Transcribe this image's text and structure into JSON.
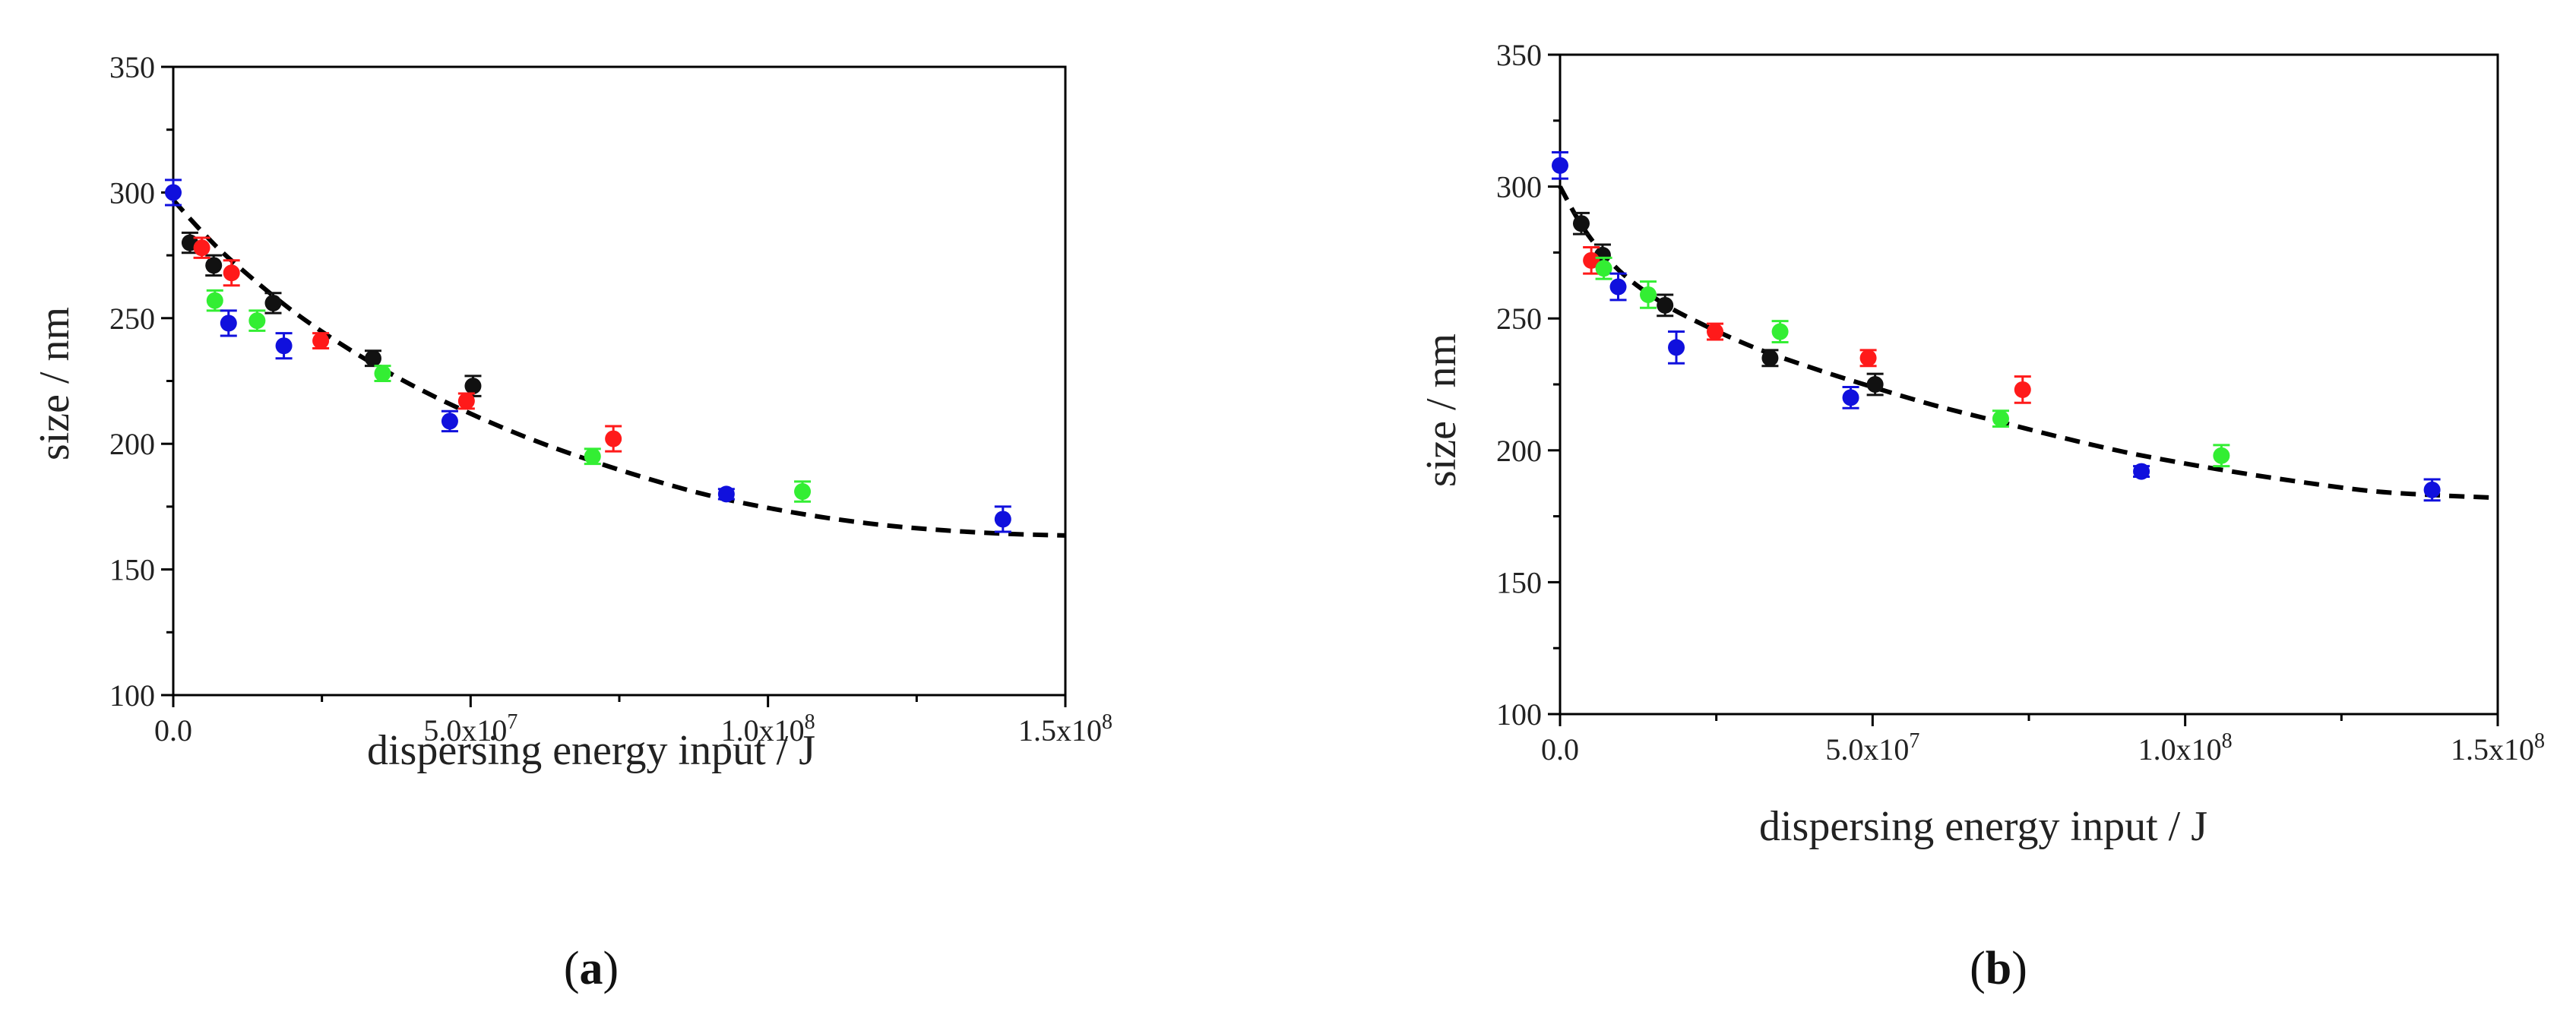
{
  "chart_data": [
    {
      "type": "scatter",
      "panel_label": "a",
      "xlabel": "dispersing energy input / J",
      "ylabel": "size / nm",
      "xlim": [
        0,
        150000000
      ],
      "ylim": [
        100,
        350
      ],
      "x_ticks": [
        {
          "value": 0,
          "mantissa": "0.0",
          "exponent": ""
        },
        {
          "value": 50000000,
          "mantissa": "5.0x10",
          "exponent": "7"
        },
        {
          "value": 100000000,
          "mantissa": "1.0x10",
          "exponent": "8"
        },
        {
          "value": 150000000,
          "mantissa": "1.5x10",
          "exponent": "8"
        }
      ],
      "y_ticks": [
        {
          "value": 100,
          "label": "100"
        },
        {
          "value": 150,
          "label": "150"
        },
        {
          "value": 200,
          "label": "200"
        },
        {
          "value": 250,
          "label": "250"
        },
        {
          "value": 300,
          "label": "300"
        },
        {
          "value": 350,
          "label": "350"
        }
      ],
      "series": [
        {
          "name": "black",
          "color": "#111111",
          "points": [
            {
              "x": 2800000,
              "y": 280,
              "err": 4
            },
            {
              "x": 6800000,
              "y": 271,
              "err": 4
            },
            {
              "x": 16800000,
              "y": 256,
              "err": 4
            },
            {
              "x": 33600000,
              "y": 234,
              "err": 3
            },
            {
              "x": 50400000,
              "y": 223,
              "err": 4
            }
          ]
        },
        {
          "name": "red",
          "color": "#ff1a1a",
          "points": [
            {
              "x": 4800000,
              "y": 278,
              "err": 4
            },
            {
              "x": 9800000,
              "y": 268,
              "err": 5
            },
            {
              "x": 24800000,
              "y": 241,
              "err": 3
            },
            {
              "x": 49300000,
              "y": 217,
              "err": 3
            },
            {
              "x": 74000000,
              "y": 202,
              "err": 5
            }
          ]
        },
        {
          "name": "green",
          "color": "#33ee33",
          "points": [
            {
              "x": 7000000,
              "y": 257,
              "err": 4
            },
            {
              "x": 14100000,
              "y": 249,
              "err": 4
            },
            {
              "x": 35200000,
              "y": 228,
              "err": 3
            },
            {
              "x": 70500000,
              "y": 195,
              "err": 3
            },
            {
              "x": 105800000,
              "y": 181,
              "err": 4
            }
          ]
        },
        {
          "name": "blue",
          "color": "#1010dd",
          "points": [
            {
              "x": 0,
              "y": 300,
              "err": 5
            },
            {
              "x": 9300000,
              "y": 248,
              "err": 5
            },
            {
              "x": 18600000,
              "y": 239,
              "err": 5
            },
            {
              "x": 46500000,
              "y": 209,
              "err": 4
            },
            {
              "x": 93000000,
              "y": 180,
              "err": 2
            },
            {
              "x": 139500000,
              "y": 170,
              "err": 5
            }
          ]
        }
      ],
      "fit_curve": {
        "style": "dashed",
        "color": "#000000",
        "points": [
          [
            0,
            297
          ],
          [
            5000000,
            284
          ],
          [
            10000000,
            272.5
          ],
          [
            20000000,
            253
          ],
          [
            30000000,
            237
          ],
          [
            40000000,
            223.5
          ],
          [
            50000000,
            212
          ],
          [
            60000000,
            202
          ],
          [
            70000000,
            193.5
          ],
          [
            80000000,
            186
          ],
          [
            90000000,
            179.5
          ],
          [
            100000000,
            174.5
          ],
          [
            110000000,
            170.5
          ],
          [
            120000000,
            167.5
          ],
          [
            130000000,
            165.5
          ],
          [
            140000000,
            164.2
          ],
          [
            150000000,
            163.5
          ]
        ]
      }
    },
    {
      "type": "scatter",
      "panel_label": "b",
      "xlabel": "dispersing energy input / J",
      "ylabel": "size / nm",
      "xlim": [
        0,
        150000000
      ],
      "ylim": [
        100,
        350
      ],
      "x_ticks": [
        {
          "value": 0,
          "mantissa": "0.0",
          "exponent": ""
        },
        {
          "value": 50000000,
          "mantissa": "5.0x10",
          "exponent": "7"
        },
        {
          "value": 100000000,
          "mantissa": "1.0x10",
          "exponent": "8"
        },
        {
          "value": 150000000,
          "mantissa": "1.5x10",
          "exponent": "8"
        }
      ],
      "y_ticks": [
        {
          "value": 100,
          "label": "100"
        },
        {
          "value": 150,
          "label": "150"
        },
        {
          "value": 200,
          "label": "200"
        },
        {
          "value": 250,
          "label": "250"
        },
        {
          "value": 300,
          "label": "300"
        },
        {
          "value": 350,
          "label": "350"
        }
      ],
      "series": [
        {
          "name": "black",
          "color": "#111111",
          "points": [
            {
              "x": 3400000,
              "y": 286,
              "err": 4
            },
            {
              "x": 6800000,
              "y": 274,
              "err": 4
            },
            {
              "x": 16800000,
              "y": 255,
              "err": 4
            },
            {
              "x": 33600000,
              "y": 235,
              "err": 3
            },
            {
              "x": 50400000,
              "y": 225,
              "err": 4
            }
          ]
        },
        {
          "name": "red",
          "color": "#ff1a1a",
          "points": [
            {
              "x": 5000000,
              "y": 272,
              "err": 5
            },
            {
              "x": 24800000,
              "y": 245,
              "err": 3
            },
            {
              "x": 49300000,
              "y": 235,
              "err": 3
            },
            {
              "x": 74000000,
              "y": 223,
              "err": 5
            }
          ]
        },
        {
          "name": "green",
          "color": "#33ee33",
          "points": [
            {
              "x": 7000000,
              "y": 269,
              "err": 4
            },
            {
              "x": 14100000,
              "y": 259,
              "err": 5
            },
            {
              "x": 35200000,
              "y": 245,
              "err": 4
            },
            {
              "x": 70500000,
              "y": 212,
              "err": 3
            },
            {
              "x": 105800000,
              "y": 198,
              "err": 4
            }
          ]
        },
        {
          "name": "blue",
          "color": "#1010dd",
          "points": [
            {
              "x": 0,
              "y": 308,
              "err": 5
            },
            {
              "x": 9300000,
              "y": 262,
              "err": 5
            },
            {
              "x": 18600000,
              "y": 239,
              "err": 6
            },
            {
              "x": 46500000,
              "y": 220,
              "err": 4
            },
            {
              "x": 93000000,
              "y": 192,
              "err": 2
            },
            {
              "x": 139500000,
              "y": 185,
              "err": 4
            }
          ]
        }
      ],
      "fit_curve": {
        "style": "dashed",
        "color": "#000000",
        "points": [
          [
            0,
            300
          ],
          [
            3000000,
            287
          ],
          [
            6000000,
            277
          ],
          [
            10000000,
            267
          ],
          [
            15000000,
            258
          ],
          [
            20000000,
            251
          ],
          [
            30000000,
            240
          ],
          [
            40000000,
            231.5
          ],
          [
            50000000,
            224
          ],
          [
            60000000,
            217
          ],
          [
            70000000,
            211
          ],
          [
            80000000,
            205
          ],
          [
            90000000,
            199.5
          ],
          [
            100000000,
            195
          ],
          [
            110000000,
            191
          ],
          [
            120000000,
            187.5
          ],
          [
            130000000,
            184.5
          ],
          [
            140000000,
            183
          ],
          [
            150000000,
            182
          ]
        ]
      }
    }
  ]
}
